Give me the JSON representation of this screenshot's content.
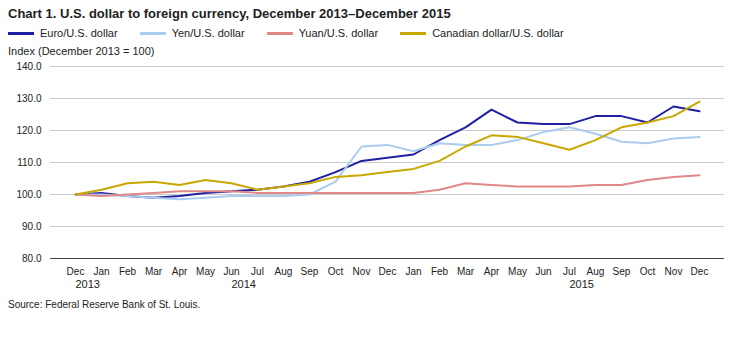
{
  "chart_data": {
    "type": "line",
    "title": "Chart 1. U.S. dollar to foreign currency, December 2013–December 2015",
    "ylabel": "Index (December 2013 = 100)",
    "source": "Source: Federal Reserve Bank of St. Louis.",
    "categories": [
      "Dec",
      "Jan",
      "Feb",
      "Mar",
      "Apr",
      "May",
      "Jun",
      "Jul",
      "Aug",
      "Sep",
      "Oct",
      "Nov",
      "Dec",
      "Jan",
      "Feb",
      "Mar",
      "Apr",
      "May",
      "Jun",
      "Jul",
      "Aug",
      "Sep",
      "Oct",
      "Nov",
      "Dec"
    ],
    "annotations": [
      {
        "text": "2013",
        "x": 0
      },
      {
        "text": "2014",
        "x": 6
      },
      {
        "text": "2015",
        "x": 19
      }
    ],
    "series": [
      {
        "name": "Euro/U.S. dollar",
        "color": "#1f1fa3",
        "values": [
          100.0,
          100.5,
          99.5,
          99.0,
          99.5,
          100.5,
          101.0,
          101.5,
          102.5,
          104.0,
          107.0,
          110.5,
          111.5,
          112.5,
          117.0,
          121.0,
          126.5,
          122.5,
          122.0,
          122.0,
          124.5,
          124.5,
          122.5,
          127.5,
          126.0
        ]
      },
      {
        "name": "Yen/U.S. dollar",
        "color": "#aaccee",
        "values": [
          100.0,
          100.0,
          99.5,
          99.0,
          98.5,
          99.0,
          99.5,
          99.5,
          99.5,
          100.0,
          104.0,
          115.0,
          115.5,
          113.5,
          116.0,
          115.5,
          115.5,
          117.0,
          119.5,
          121.0,
          119.0,
          116.5,
          116.0,
          117.5,
          118.0
        ]
      },
      {
        "name": "Yuan/U.S. dollar",
        "color": "#e08888",
        "values": [
          100.0,
          99.5,
          100.0,
          100.5,
          101.0,
          101.0,
          101.0,
          100.5,
          100.5,
          100.5,
          100.5,
          100.5,
          100.5,
          100.5,
          101.5,
          103.5,
          103.0,
          102.5,
          102.5,
          102.5,
          103.0,
          103.0,
          104.5,
          105.5,
          106.0
        ]
      },
      {
        "name": "Canadian dollar/U.S. dollar",
        "color": "#c8a800",
        "values": [
          100.0,
          101.5,
          103.5,
          104.0,
          103.0,
          104.5,
          103.5,
          101.5,
          102.5,
          103.5,
          105.5,
          106.0,
          107.0,
          108.0,
          110.5,
          115.0,
          118.5,
          118.0,
          116.0,
          114.0,
          117.0,
          121.0,
          122.5,
          124.5,
          129.0
        ]
      }
    ],
    "ylim": [
      80.0,
      140.0
    ],
    "yticks": [
      {
        "value": 80,
        "label": "80.0"
      },
      {
        "value": 90,
        "label": "90.0"
      },
      {
        "value": 100,
        "label": "100.0"
      },
      {
        "value": 110,
        "label": "110.0"
      },
      {
        "value": 120,
        "label": "120.0"
      },
      {
        "value": 130,
        "label": "130.0"
      },
      {
        "value": 140,
        "label": "140.0"
      }
    ],
    "grid": true,
    "legend": "top"
  }
}
